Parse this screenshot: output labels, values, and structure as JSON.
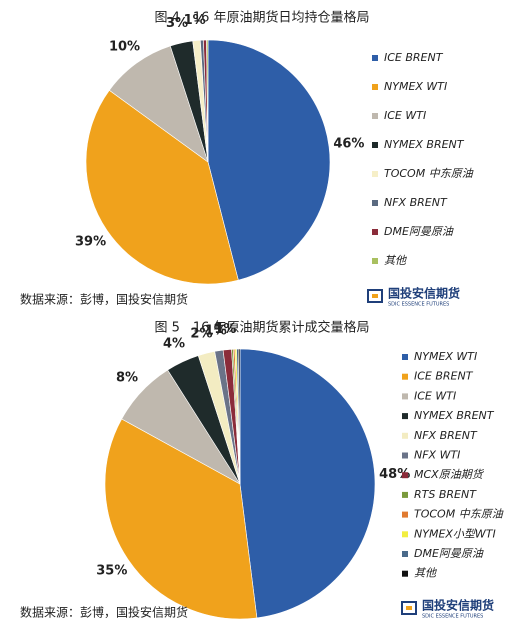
{
  "chart_data": [
    {
      "type": "pie",
      "title": "图 4　16 年原油期货日均持仓量格局",
      "categories": [
        "ICE BRENT",
        "NYMEX WTI",
        "ICE WTI",
        "NYMEX BRENT",
        "TOCOM 中东原油",
        "NFX BRENT",
        "DME阿曼原油",
        "其他"
      ],
      "values": [
        46,
        39,
        10,
        3,
        1,
        0.4,
        0.4,
        0.2
      ],
      "value_labels": [
        "46%",
        "39%",
        "10%",
        "3%",
        "1%",
        null,
        null,
        null
      ],
      "colors": [
        "#2e5ea8",
        "#f0a21c",
        "#bfb8ae",
        "#1f2b2b",
        "#f6efc8",
        "#5a6a80",
        "#8b2c3a",
        "#a9c060"
      ],
      "source": "数据来源：彭博，国投安信期货",
      "logo": "国投安信期货",
      "logo_subtitle": "SDIC ESSENCE FUTURES"
    },
    {
      "type": "pie",
      "title": "图 5　16 年原油期货累计成交量格局",
      "categories": [
        "NYMEX WTI",
        "ICE BRENT",
        "ICE WTI",
        "NYMEX BRENT",
        "NFX BRENT",
        "NFX WTI",
        "MCX原油期货",
        "RTS BRENT",
        "TOCOM 中东原油",
        "NYMEX小型WTI",
        "DME阿曼原油",
        "其他"
      ],
      "values": [
        48,
        35,
        8,
        4,
        2,
        1,
        1,
        0.2,
        0.2,
        0.2,
        0.2,
        0.2
      ],
      "value_labels": [
        "48%",
        "35%",
        "8%",
        "4%",
        "2%",
        "1%",
        "1%",
        null,
        null,
        null,
        null,
        null
      ],
      "colors": [
        "#2e5ea8",
        "#f0a21c",
        "#bfb8ae",
        "#1f2b2b",
        "#f3ecc2",
        "#6a7388",
        "#8b2c3a",
        "#7a9a3c",
        "#e07a30",
        "#f2ee40",
        "#4a6a8a",
        "#111111"
      ],
      "source": "数据来源：彭博，国投安信期货",
      "logo": "国投安信期货",
      "logo_subtitle": "SDIC ESSENCE FUTURES"
    }
  ]
}
